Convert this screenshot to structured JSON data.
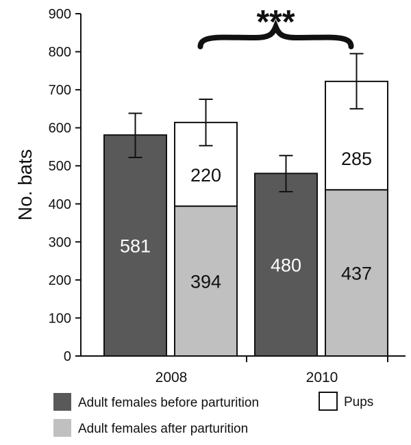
{
  "chart_data": {
    "type": "bar",
    "stacked": true,
    "ylabel": "No. bats",
    "ylim": [
      0,
      900
    ],
    "yticks": [
      0,
      100,
      200,
      300,
      400,
      500,
      600,
      700,
      800,
      900
    ],
    "grid": false,
    "groups": [
      {
        "label": "2008",
        "bars": [
          {
            "segments": [
              {
                "series": "before",
                "value": 581,
                "label": "581"
              }
            ],
            "total": 581,
            "error": [
              522,
              638
            ]
          },
          {
            "segments": [
              {
                "series": "after",
                "value": 394,
                "label": "394"
              },
              {
                "series": "pups",
                "value": 220,
                "label": "220"
              }
            ],
            "total": 614,
            "error": [
              553,
              675
            ]
          }
        ]
      },
      {
        "label": "2010",
        "bars": [
          {
            "segments": [
              {
                "series": "before",
                "value": 480,
                "label": "480"
              }
            ],
            "total": 480,
            "error": [
              432,
              527
            ]
          },
          {
            "segments": [
              {
                "series": "after",
                "value": 437,
                "label": "437"
              },
              {
                "series": "pups",
                "value": 285,
                "label": "285"
              }
            ],
            "total": 722,
            "error": [
              650,
              795
            ]
          }
        ]
      }
    ],
    "series": [
      {
        "key": "before",
        "name": "Adult females before parturition",
        "color": "#595959",
        "value_text_color": "#ffffff"
      },
      {
        "key": "after",
        "name": "Adult females after parturition",
        "color": "#c0c0c0",
        "value_text_color": "#111111"
      },
      {
        "key": "pups",
        "name": "Pups",
        "color": "#ffffff",
        "value_text_color": "#111111"
      }
    ],
    "annotation": {
      "text": "***",
      "between": "2008 after-parturition bar and 2010 after-parturition bar"
    },
    "legend_position": "bottom"
  }
}
